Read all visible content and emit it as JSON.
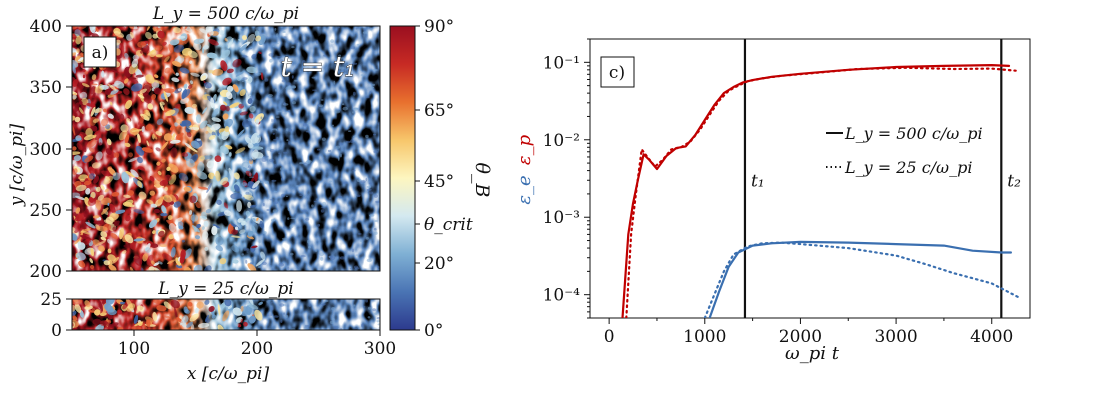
{
  "colors": {
    "red": "#c00000",
    "blue": "#3a6fb0",
    "black": "#111111",
    "cmap": [
      "#2c3a8e",
      "#4a74b4",
      "#7fb0d4",
      "#d4e9f0",
      "#fdf6c0",
      "#f7c66b",
      "#e8702e",
      "#c72a24",
      "#9a0f20"
    ]
  },
  "panel_a": {
    "label": "a)",
    "annotation": "t = t₁",
    "top_title": "L_y = 500 c/ω_pi",
    "bottom_title": "L_y = 25 c/ω_pi",
    "xlabel": "x [c/ω_pi]",
    "ylabel": "y [c/ω_pi]",
    "top_y_ticks": [
      "400",
      "350",
      "300",
      "250",
      "200"
    ],
    "bottom_y_ticks": [
      "25",
      "0"
    ],
    "x_ticks": [
      "100",
      "200",
      "300"
    ],
    "colorbar_label": "θ_B",
    "colorbar_ticks": [
      "90°",
      "65°",
      "45°",
      "θ_crit",
      "20°",
      "0°"
    ]
  },
  "chart_data": [
    {
      "type": "heatmap",
      "title": "L_y = 500 c/ω_pi",
      "xlabel": "x [c/ω_pi]",
      "ylabel": "y [c/ω_pi]",
      "xlim": [
        50,
        300
      ],
      "ylim": [
        200,
        400
      ],
      "colorbar": {
        "label": "θ_B",
        "range": [
          0,
          90
        ],
        "ticks": [
          0,
          20,
          "θ_crit",
          45,
          65,
          90
        ]
      },
      "annotation": "t = t₁"
    },
    {
      "type": "heatmap",
      "title": "L_y = 25 c/ω_pi",
      "xlabel": "x [c/ω_pi]",
      "ylabel": "y [c/ω_pi]",
      "xlim": [
        50,
        300
      ],
      "ylim": [
        0,
        25
      ]
    },
    {
      "type": "line",
      "panel_label": "c)",
      "xlabel": "ω_pi t",
      "ylabel_top": "ε_p",
      "ylabel_bottom": "ε_e",
      "xlim": [
        -200,
        4400
      ],
      "ylim": [
        5e-05,
        0.2
      ],
      "yscale": "log",
      "x_ticks": [
        0,
        1000,
        2000,
        3000,
        4000
      ],
      "x_tick_labels": [
        "0",
        "1000",
        "2000",
        "3000",
        "4000"
      ],
      "y_ticks": [
        0.0001,
        0.001,
        0.01,
        0.1
      ],
      "y_tick_labels": [
        "10⁻⁴",
        "10⁻³",
        "10⁻²",
        "10⁻¹"
      ],
      "vlines": [
        {
          "x": 1420,
          "label": "t₁"
        },
        {
          "x": 4100,
          "label": "t₂"
        }
      ],
      "legend": [
        {
          "style": "solid",
          "text": "L_y = 500 c/ω_pi"
        },
        {
          "style": "dotted",
          "text": "L_y = 25 c/ω_pi"
        }
      ],
      "series": [
        {
          "name": "ε_p, L_y = 500",
          "color": "red",
          "style": "solid",
          "x": [
            140,
            200,
            250,
            300,
            360,
            420,
            500,
            600,
            700,
            800,
            900,
            1000,
            1100,
            1200,
            1300,
            1400,
            1500,
            1700,
            2000,
            2500,
            3000,
            3500,
            4000,
            4180
          ],
          "y": [
            5e-05,
            0.0006,
            0.0015,
            0.003,
            0.0065,
            0.0055,
            0.0042,
            0.0062,
            0.0078,
            0.0082,
            0.0115,
            0.018,
            0.028,
            0.04,
            0.048,
            0.055,
            0.059,
            0.065,
            0.071,
            0.08,
            0.087,
            0.09,
            0.092,
            0.09
          ]
        },
        {
          "name": "ε_p, L_y = 25",
          "color": "red",
          "style": "dotted",
          "x": [
            180,
            230,
            280,
            340,
            400,
            480,
            560,
            650,
            750,
            850,
            950,
            1050,
            1150,
            1250,
            1350,
            1450,
            1600,
            1800,
            2100,
            2600,
            3100,
            3600,
            4000,
            4250
          ],
          "y": [
            5e-05,
            0.0006,
            0.002,
            0.0075,
            0.006,
            0.0045,
            0.0055,
            0.0075,
            0.008,
            0.0095,
            0.0135,
            0.021,
            0.032,
            0.043,
            0.05,
            0.057,
            0.062,
            0.067,
            0.072,
            0.082,
            0.085,
            0.082,
            0.083,
            0.078
          ]
        },
        {
          "name": "ε_e, L_y = 500",
          "color": "blue",
          "style": "solid",
          "x": [
            1050,
            1150,
            1250,
            1350,
            1500,
            1700,
            2000,
            2500,
            3000,
            3500,
            3800,
            4100,
            4200
          ],
          "y": [
            5e-05,
            0.00011,
            0.00023,
            0.00035,
            0.00043,
            0.00046,
            0.00048,
            0.00047,
            0.00045,
            0.00043,
            0.00037,
            0.00035,
            0.00035
          ]
        },
        {
          "name": "ε_e, L_y = 25",
          "color": "blue",
          "style": "dotted",
          "x": [
            1000,
            1100,
            1200,
            1300,
            1450,
            1600,
            1800,
            2000,
            2500,
            3000,
            3300,
            3600,
            4000,
            4300
          ],
          "y": [
            5e-05,
            0.0001,
            0.0002,
            0.00033,
            0.00042,
            0.00046,
            0.00047,
            0.00045,
            0.0004,
            0.00032,
            0.00025,
            0.00019,
            0.00014,
            9e-05
          ]
        }
      ]
    }
  ]
}
